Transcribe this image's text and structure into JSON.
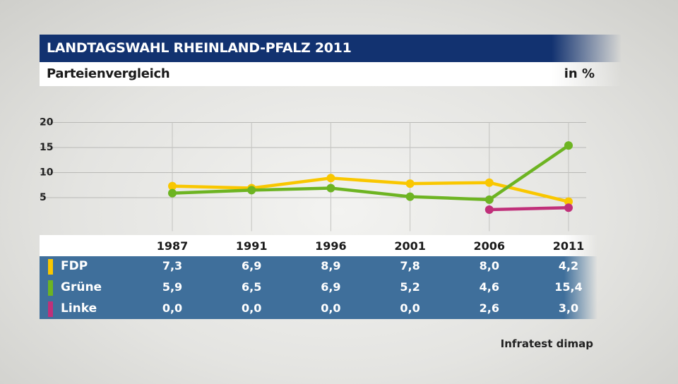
{
  "header": {
    "title": "LANDTAGSWAHL RHEINLAND-PFALZ 2011",
    "subtitle": "Parteienvergleich",
    "unit": "in %"
  },
  "source": "Infratest dimap",
  "chart_data": {
    "type": "line",
    "x": [
      "1987",
      "1991",
      "1996",
      "2001",
      "2006",
      "2011"
    ],
    "y_ticks": [
      "5",
      "10",
      "15",
      "20"
    ],
    "ylim": [
      0,
      20
    ],
    "grid": true,
    "series": [
      {
        "name": "FDP",
        "color": "#f9c700",
        "values": [
          7.3,
          6.9,
          8.9,
          7.8,
          8.0,
          4.2
        ],
        "labels": [
          "7,3",
          "6,9",
          "8,9",
          "7,8",
          "8,0",
          "4,2"
        ]
      },
      {
        "name": "Grüne",
        "color": "#6db422",
        "values": [
          5.9,
          6.5,
          6.9,
          5.2,
          4.6,
          15.4
        ],
        "labels": [
          "5,9",
          "6,5",
          "6,9",
          "5,2",
          "4,6",
          "15,4"
        ]
      },
      {
        "name": "Linke",
        "color": "#c0307a",
        "values": [
          0.0,
          0.0,
          0.0,
          0.0,
          2.6,
          3.0
        ],
        "labels": [
          "0,0",
          "0,0",
          "0,0",
          "0,0",
          "2,6",
          "3,0"
        ]
      }
    ]
  }
}
